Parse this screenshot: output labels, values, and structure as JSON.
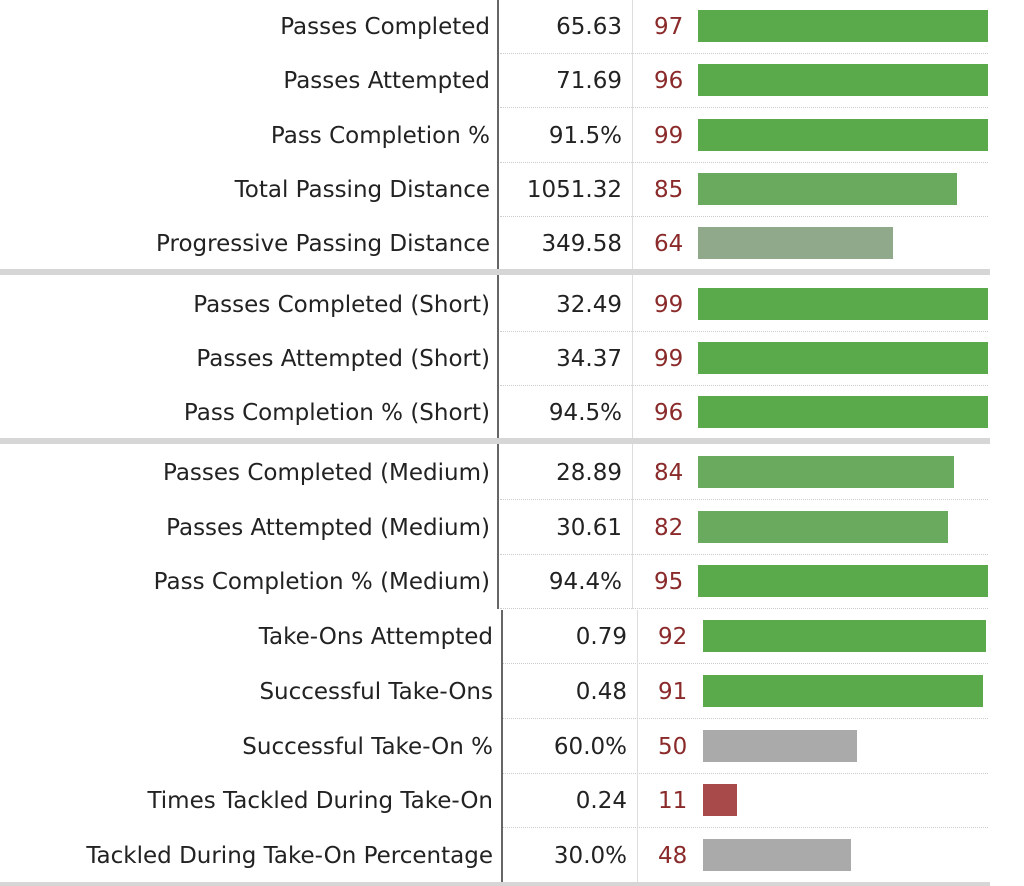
{
  "chart_data": [
    {
      "type": "bar",
      "orientation": "horizontal",
      "xlim": [
        0,
        100
      ],
      "rows": [
        {
          "label": "Passes Completed",
          "value": "65.63",
          "percentile": 97,
          "color": "#5aaa4c"
        },
        {
          "label": "Passes Attempted",
          "value": "71.69",
          "percentile": 96,
          "color": "#5aaa4c"
        },
        {
          "label": "Pass Completion %",
          "value": "91.5%",
          "percentile": 99,
          "color": "#5aaa4c"
        },
        {
          "label": "Total Passing Distance",
          "value": "1051.32",
          "percentile": 85,
          "color": "#6aaa5e"
        },
        {
          "label": "Progressive Passing Distance",
          "value": "349.58",
          "percentile": 64,
          "color": "#8fa98a"
        },
        {
          "label": "Passes Completed (Short)",
          "value": "32.49",
          "percentile": 99,
          "color": "#5aaa4c",
          "group_start": true
        },
        {
          "label": "Passes Attempted (Short)",
          "value": "34.37",
          "percentile": 99,
          "color": "#5aaa4c"
        },
        {
          "label": "Pass Completion % (Short)",
          "value": "94.5%",
          "percentile": 96,
          "color": "#5aaa4c"
        },
        {
          "label": "Passes Completed (Medium)",
          "value": "28.89",
          "percentile": 84,
          "color": "#6aaa5e",
          "group_start": true
        },
        {
          "label": "Passes Attempted (Medium)",
          "value": "30.61",
          "percentile": 82,
          "color": "#6aaa5e"
        },
        {
          "label": "Pass Completion % (Medium)",
          "value": "94.4%",
          "percentile": 95,
          "color": "#5aaa4c"
        }
      ]
    },
    {
      "type": "bar",
      "orientation": "horizontal",
      "xlim": [
        0,
        100
      ],
      "rows": [
        {
          "label": "Take-Ons Attempted",
          "value": "0.79",
          "percentile": 92,
          "color": "#5aaa4c"
        },
        {
          "label": "Successful Take-Ons",
          "value": "0.48",
          "percentile": 91,
          "color": "#5aaa4c"
        },
        {
          "label": "Successful Take-On %",
          "value": "60.0%",
          "percentile": 50,
          "color": "#aaaaaa"
        },
        {
          "label": "Times Tackled During Take-On",
          "value": "0.24",
          "percentile": 11,
          "color": "#a84a4a"
        },
        {
          "label": "Tackled During Take-On Percentage",
          "value": "30.0%",
          "percentile": 48,
          "color": "#aaaaaa"
        }
      ]
    }
  ]
}
